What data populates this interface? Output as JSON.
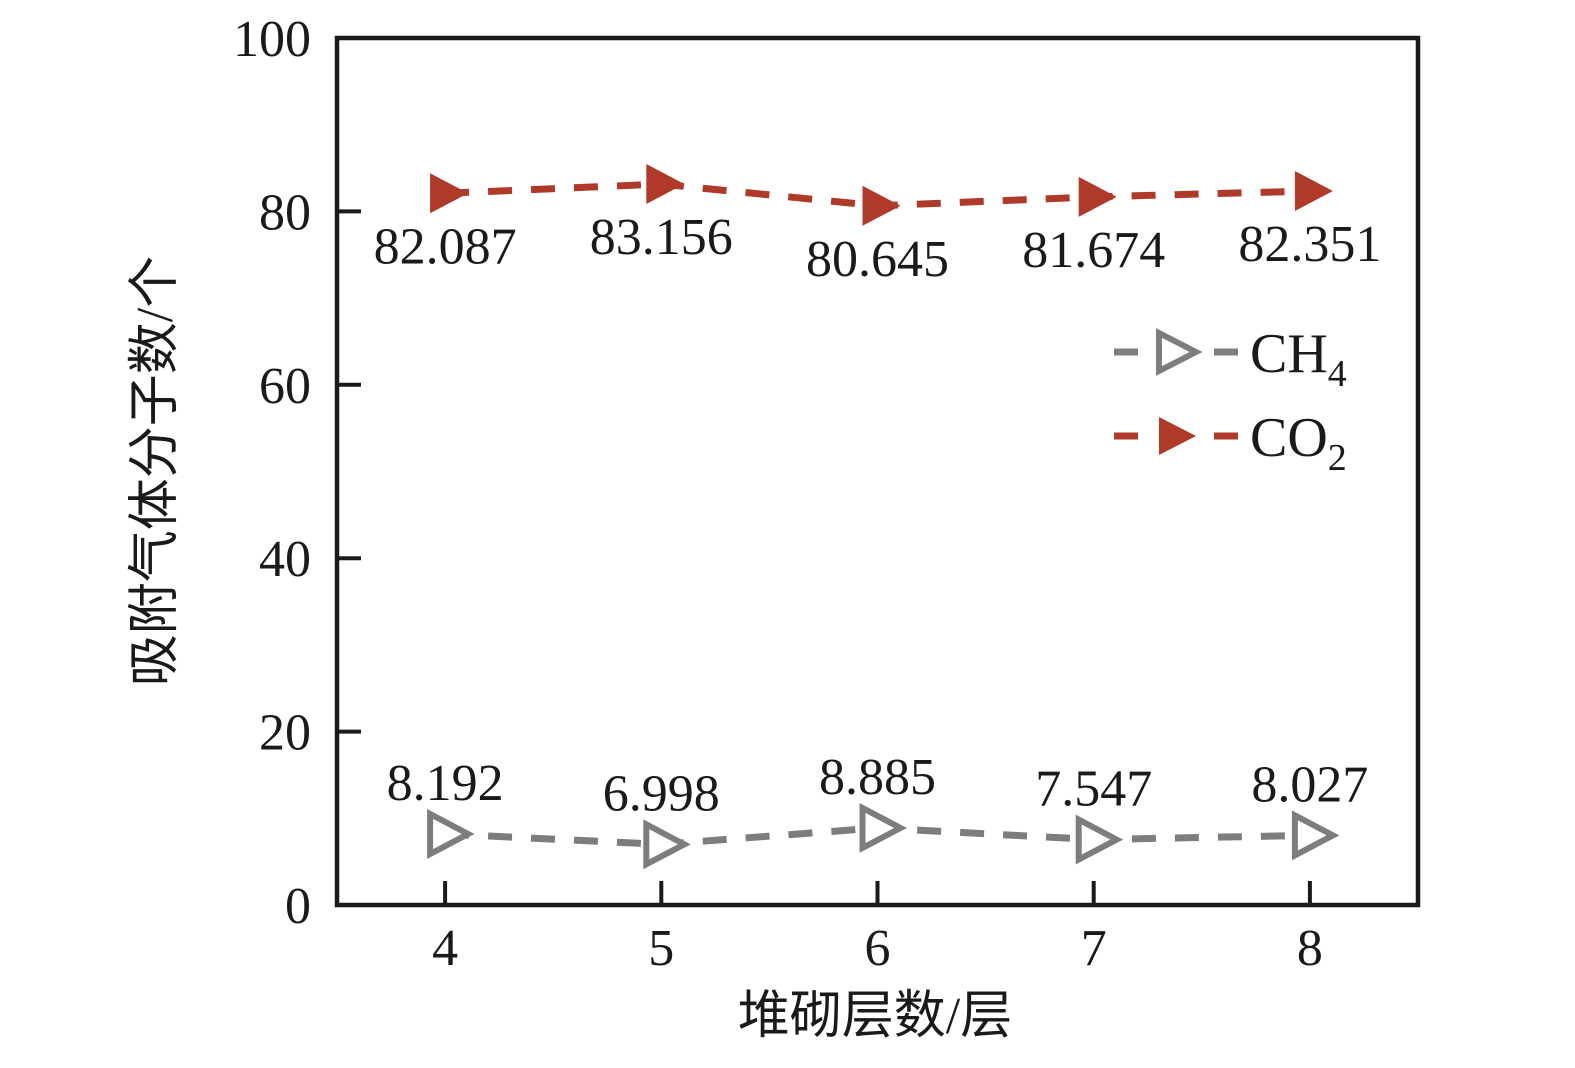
{
  "chart_data": {
    "type": "line",
    "x": [
      4,
      5,
      6,
      7,
      8
    ],
    "xlabel": "堆砌层数/层",
    "ylabel": "吸附气体分子数/个",
    "xlim": [
      3.5,
      8.5
    ],
    "ylim": [
      0,
      100
    ],
    "xticks": [
      4,
      5,
      6,
      7,
      8
    ],
    "yticks": [
      0,
      20,
      40,
      60,
      80,
      100
    ],
    "grid": false,
    "background": "#ffffff",
    "axis_color": "#1a1a1a",
    "legend_position": "inside-upper-right",
    "series": [
      {
        "id": "CH4",
        "label_main": "CH",
        "label_sub": "4",
        "values": [
          8.192,
          6.998,
          8.885,
          7.547,
          8.027
        ],
        "point_labels": [
          "8.192",
          "6.998",
          "8.885",
          "7.547",
          "8.027"
        ],
        "color": "#7d7d7d",
        "marker": "right-triangle-open",
        "line_style": "dashed",
        "point_label_side": "above"
      },
      {
        "id": "CO2",
        "label_main": "CO",
        "label_sub": "2",
        "values": [
          82.087,
          83.156,
          80.645,
          81.674,
          82.351
        ],
        "point_labels": [
          "82.087",
          "83.156",
          "80.645",
          "81.674",
          "82.351"
        ],
        "color": "#b03a2a",
        "marker": "right-triangle-filled",
        "line_style": "dashed",
        "point_label_side": "below"
      }
    ]
  }
}
